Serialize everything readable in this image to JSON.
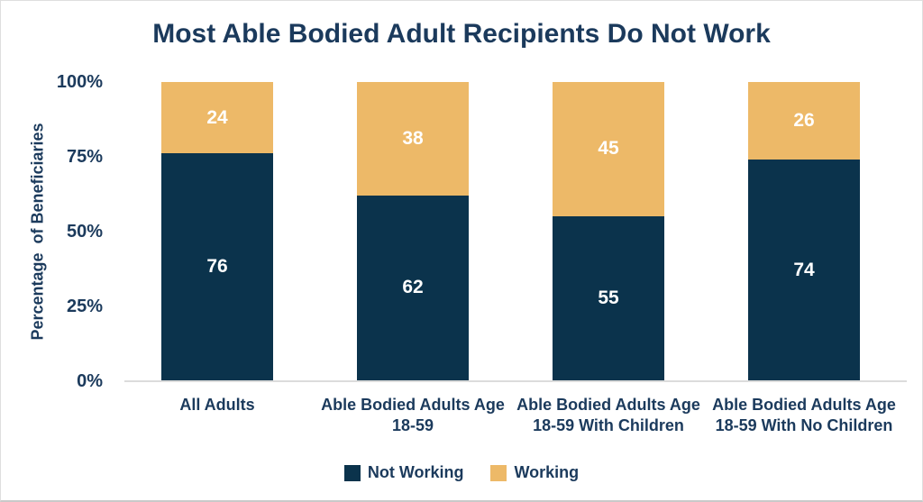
{
  "title": "Most Able Bodied Adult Recipients Do Not Work",
  "colors": {
    "not_working": "#0b334c",
    "working": "#edb968",
    "text_navy": "#1b3a5c",
    "bar_label": "#ffffff",
    "axis_line": "#dcdcdc",
    "background": "#ffffff"
  },
  "y_axis": {
    "label": "Percentage  of Beneficiaries",
    "ticks": [
      "100%",
      "75%",
      "50%",
      "25%",
      "0%"
    ]
  },
  "legend": [
    {
      "label": "Not Working",
      "color_key": "not_working"
    },
    {
      "label": "Working",
      "color_key": "working"
    }
  ],
  "chart_data": {
    "type": "bar",
    "stacked": true,
    "title": "Most Able Bodied Adult Recipients Do Not Work",
    "xlabel": "",
    "ylabel": "Percentage of Beneficiaries",
    "ylim": [
      0,
      100
    ],
    "yticks": [
      0,
      25,
      50,
      75,
      100
    ],
    "grid": false,
    "legend_position": "bottom",
    "categories": [
      "All Adults",
      "Able Bodied Adults Age 18-59",
      "Able Bodied Adults Age 18-59 With Children",
      "Able Bodied Adults Age 18-59 With No Children"
    ],
    "series": [
      {
        "name": "Not Working",
        "values": [
          76,
          62,
          55,
          74
        ]
      },
      {
        "name": "Working",
        "values": [
          24,
          38,
          45,
          26
        ]
      }
    ]
  }
}
